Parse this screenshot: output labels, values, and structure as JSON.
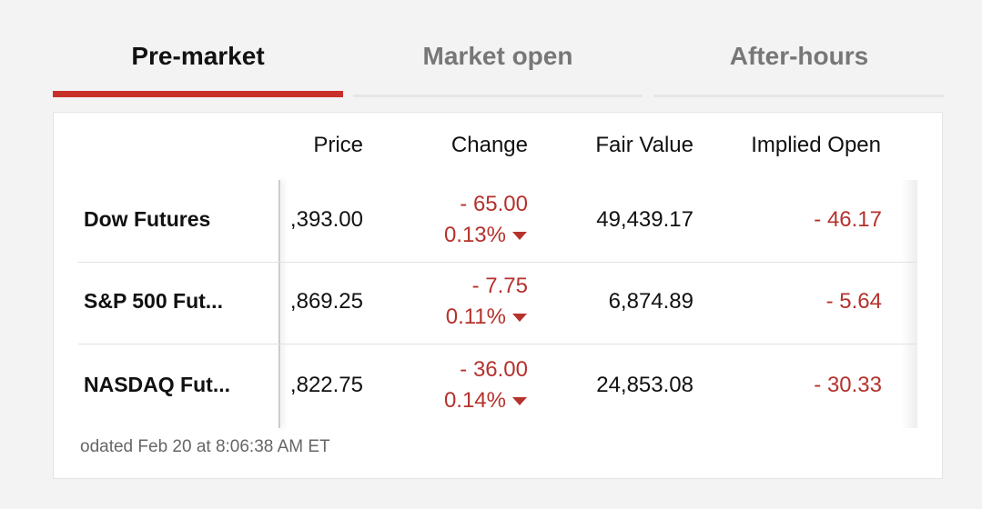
{
  "tabs": [
    "Pre-market",
    "Market open",
    "After-hours"
  ],
  "table": {
    "headers": [
      "Price",
      "Change",
      "Fair Value",
      "Implied Open"
    ],
    "rows": [
      {
        "name": "Dow Futures",
        "price": ",393.00",
        "change": "- 65.00",
        "change_pct": "0.13%",
        "fair_value": "49,439.17",
        "implied_open": "- 46.17"
      },
      {
        "name": "S&P 500 Fut...",
        "price": ",869.25",
        "change": "- 7.75",
        "change_pct": "0.11%",
        "fair_value": "6,874.89",
        "implied_open": "- 5.64"
      },
      {
        "name": "NASDAQ Fut...",
        "price": ",822.75",
        "change": "- 36.00",
        "change_pct": "0.14%",
        "fair_value": "24,853.08",
        "implied_open": "- 30.33"
      }
    ]
  },
  "footer": "odated Feb 20 at 8:06:38 AM ET"
}
